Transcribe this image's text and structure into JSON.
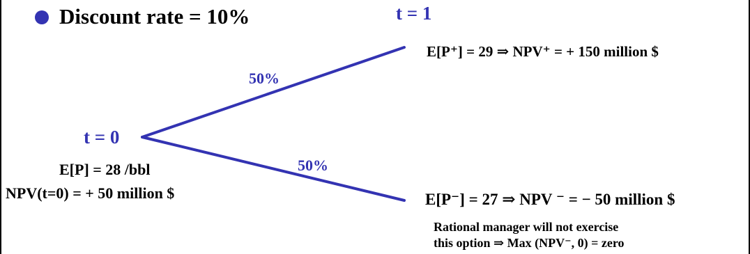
{
  "colors": {
    "accent_blue": "#3333b2",
    "text": "#000000",
    "background": "#ffffff"
  },
  "bullet": {
    "icon": "filled-circle",
    "text": "Discount rate = 10%"
  },
  "tree": {
    "root_label": "t = 0",
    "next_label": "t = 1",
    "upper_probability": "50%",
    "lower_probability": "50%"
  },
  "root": {
    "price": "E[P] = 28 /bbl",
    "npv": "NPV(t=0) = + 50 million $"
  },
  "upper": {
    "outcome": "E[P⁺] = 29  ⇒ NPV⁺ = + 150 million $"
  },
  "lower": {
    "outcome": "E[P⁻] = 27  ⇒ NPV ⁻ = − 50 million $",
    "note_line1": "Rational manager will not exercise",
    "note_line2": "this option ⇒ Max (NPV⁻, 0) = zero"
  }
}
